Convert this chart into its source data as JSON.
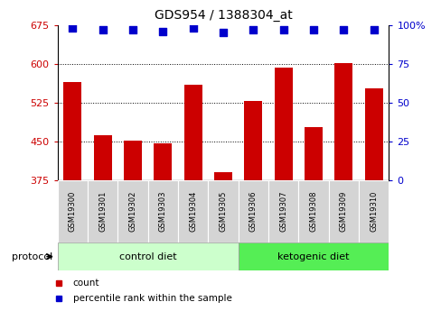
{
  "title": "GDS954 / 1388304_at",
  "samples": [
    "GSM19300",
    "GSM19301",
    "GSM19302",
    "GSM19303",
    "GSM19304",
    "GSM19305",
    "GSM19306",
    "GSM19307",
    "GSM19308",
    "GSM19309",
    "GSM19310"
  ],
  "counts": [
    565,
    462,
    452,
    447,
    560,
    390,
    528,
    592,
    478,
    602,
    552
  ],
  "percentile_ranks": [
    98,
    97,
    97,
    96,
    98,
    95,
    97,
    97,
    97,
    97,
    97
  ],
  "ylim_left": [
    375,
    675
  ],
  "ylim_right": [
    0,
    100
  ],
  "yticks_left": [
    375,
    450,
    525,
    600,
    675
  ],
  "yticks_right": [
    0,
    25,
    50,
    75,
    100
  ],
  "bar_color": "#cc0000",
  "dot_color": "#0000cc",
  "control_bg": "#ccffcc",
  "ketogenic_bg": "#55ee55",
  "bar_width": 0.6,
  "dot_size": 40,
  "ylabel_left_color": "#cc0000",
  "ylabel_right_color": "#0000cc",
  "title_fontsize": 10,
  "tick_fontsize": 8,
  "sample_fontsize": 6,
  "legend_fontsize": 7.5,
  "protocol_fontsize": 8,
  "n_control": 6,
  "n_keto": 5
}
